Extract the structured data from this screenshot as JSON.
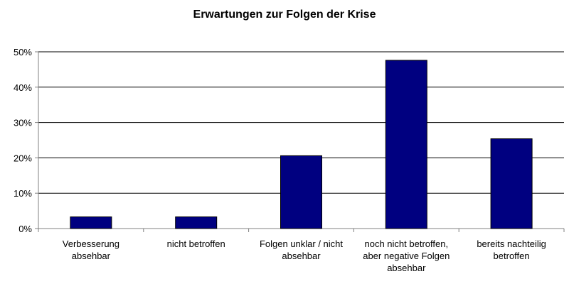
{
  "chart_data": {
    "type": "bar",
    "title": "Erwartungen zur Folgen der Krise",
    "xlabel": "",
    "ylabel": "",
    "categories": [
      [
        "Verbesserung",
        "absehbar"
      ],
      [
        "nicht betroffen"
      ],
      [
        "Folgen unklar / nicht",
        "absehbar"
      ],
      [
        "noch nicht betroffen,",
        "aber negative Folgen",
        "absehbar"
      ],
      [
        "bereits nachteilig",
        "betroffen"
      ]
    ],
    "values": [
      3.3,
      3.3,
      20.6,
      47.6,
      25.4
    ],
    "ylim": [
      0,
      50
    ],
    "yticks": [
      0,
      10,
      20,
      30,
      40,
      50
    ],
    "ytick_labels": [
      "0%",
      "10%",
      "20%",
      "30%",
      "40%",
      "50%"
    ],
    "grid": true,
    "legend": "none",
    "colors": {
      "bar": "#000080",
      "bar_edge": "#000000",
      "grid": "#000000",
      "axis": "#808080"
    }
  }
}
